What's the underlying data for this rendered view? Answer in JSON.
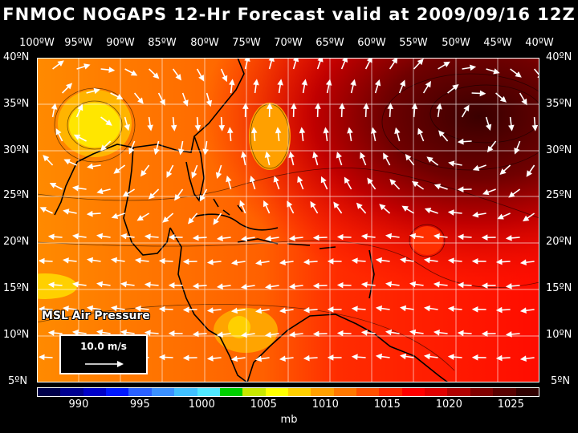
{
  "title": "FNMOC NOGAPS 12-Hr Forecast valid at 2009/09/16 12Z",
  "longitudes": [
    "100ºW",
    "95ºW",
    "90ºW",
    "85ºW",
    "80ºW",
    "75ºW",
    "70ºW",
    "65ºW",
    "60ºW",
    "55ºW",
    "50ºW",
    "45ºW",
    "40ºW"
  ],
  "latitudes": [
    "40ºN",
    "35ºN",
    "30ºN",
    "25ºN",
    "20ºN",
    "15ºN",
    "10ºN",
    "5ºN"
  ],
  "legend_label": "MSL Air Pressure",
  "scale_label": "10.0 m/s",
  "colorbar": {
    "colors": [
      "#00004a",
      "#000090",
      "#0000c8",
      "#0018ff",
      "#2a60ff",
      "#3a90ff",
      "#40c0ff",
      "#50e8ff",
      "#00d000",
      "#c8e800",
      "#ffff00",
      "#ffd000",
      "#ffa000",
      "#ff7800",
      "#ff5000",
      "#ff2800",
      "#ff0000",
      "#e00000",
      "#b00000",
      "#800000",
      "#580000",
      "#300000"
    ],
    "ticks": [
      "990",
      "995",
      "1000",
      "1005",
      "1010",
      "1015",
      "1020",
      "1025"
    ],
    "tick_positions": [
      0.083,
      0.205,
      0.328,
      0.451,
      0.574,
      0.697,
      0.82,
      0.943
    ],
    "unit": "mb"
  },
  "colors": {
    "grid": "#ffffff",
    "coast": "#000000",
    "arrows": "#ffffff"
  }
}
